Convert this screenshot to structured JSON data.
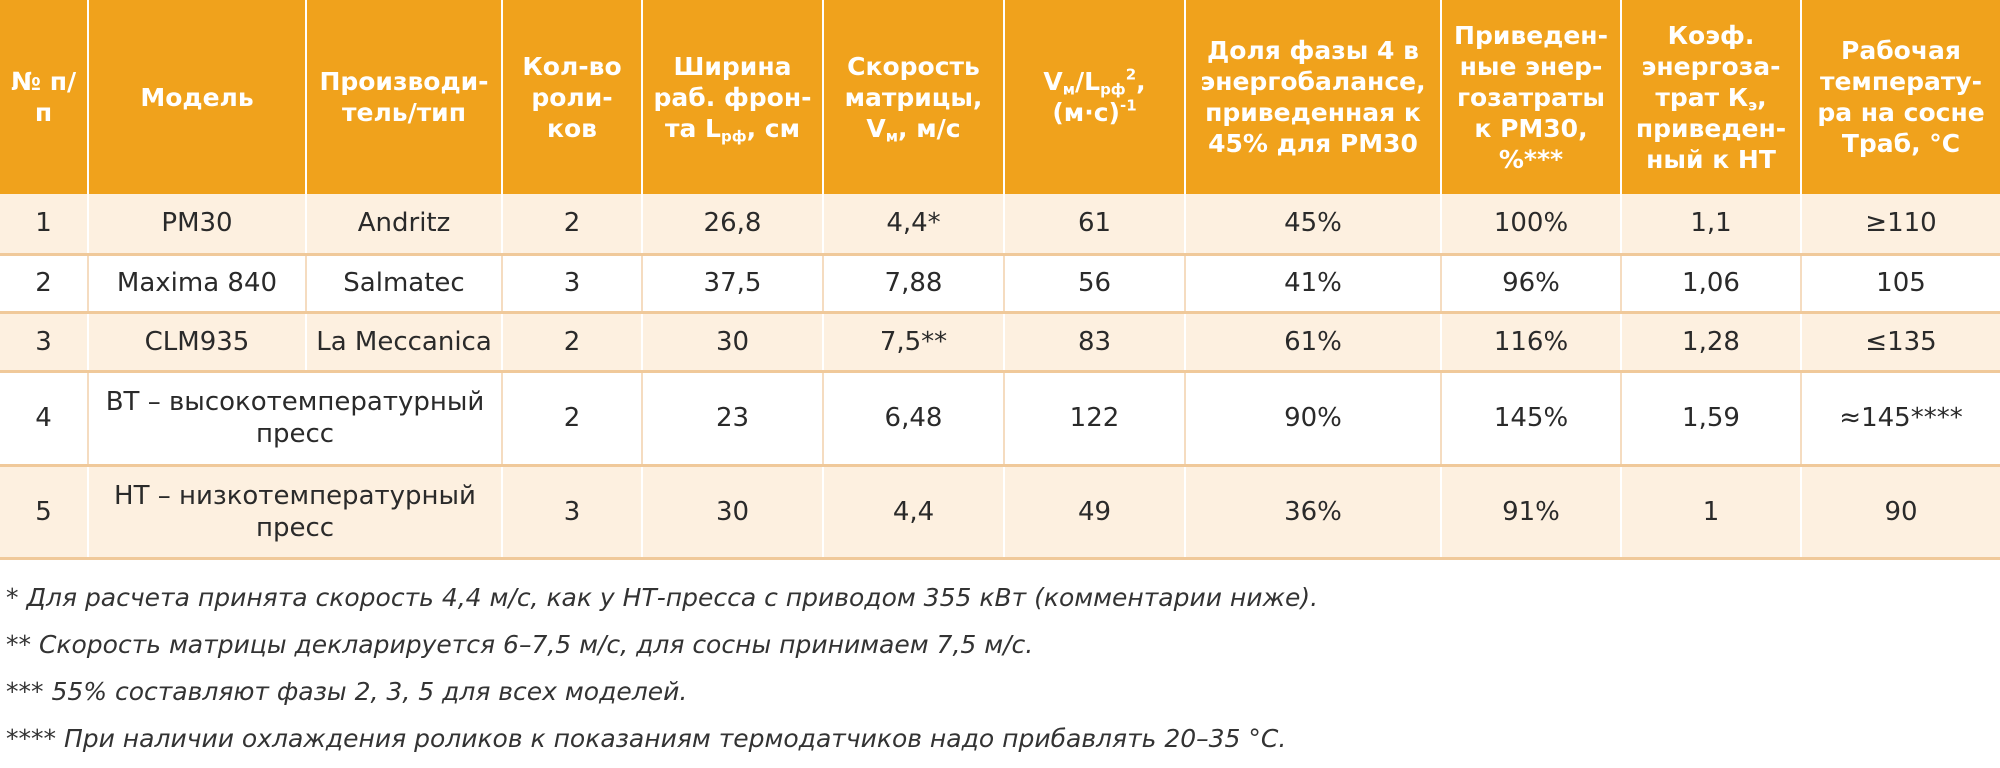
{
  "table": {
    "headers": [
      "№ п/п",
      "Модель",
      "Производи-тель/тип",
      "Кол-во роли-ков",
      "Ширина раб. фрон-та L",
      "Скорость матрицы, V",
      "V",
      "Доля фазы 4 в энергобалансе, приведенная к 45% для РМ30",
      "Приведен-ные энер-гозатраты к РМ30, %***",
      "Коэф. энергоза-трат К",
      "Рабочая температу-ра на сосне Траб, °С"
    ],
    "header_parts": {
      "width_sub": "рф",
      "width_unit": ", см",
      "speed_sub": "м",
      "speed_unit": ", м/с",
      "ratio_sub1": "м",
      "ratio_mid": "/L",
      "ratio_sub2": "рф",
      "ratio_sup": "2",
      "ratio_comma": ",",
      "ratio_unit": "(м·с)",
      "ratio_exp": "-1",
      "coef_sub": "э",
      "coef_rest": ", приведен-ный к НТ"
    },
    "rows": [
      [
        "1",
        "РМ30",
        "Andritz",
        "2",
        "26,8",
        "4,4*",
        "61",
        "45%",
        "100%",
        "1,1",
        "≥110"
      ],
      [
        "2",
        "Maxima 840",
        "Salmatec",
        "3",
        "37,5",
        "7,88",
        "56",
        "41%",
        "96%",
        "1,06",
        "105"
      ],
      [
        "3",
        "CLM935",
        "La Meccanica",
        "2",
        "30",
        "7,5**",
        "83",
        "61%",
        "116%",
        "1,28",
        "≤135"
      ],
      [
        "4",
        "ВТ – высокотемпературный пресс",
        "",
        "2",
        "23",
        "6,48",
        "122",
        "90%",
        "145%",
        "1,59",
        "≈145****"
      ],
      [
        "5",
        "НТ – низкотемпературный пресс",
        "",
        "3",
        "30",
        "4,4",
        "49",
        "36%",
        "91%",
        "1",
        "90"
      ]
    ]
  },
  "footnotes": [
    "* Для расчета принята скорость 4,4 м/с, как у НТ-пресса с приводом 355 кВт (комментарии ниже).",
    "** Скорость матрицы декларируется 6–7,5 м/с, для сосны принимаем 7,5 м/с.",
    "*** 55% составляют фазы 2, 3, 5 для всех моделей.",
    "**** При наличии охлаждения роликов к показаниям термодатчиков надо прибавлять 20–35 °С."
  ],
  "colors": {
    "header_bg": "#f0a21c",
    "header_text": "#ffffff",
    "odd_row_bg": "#fdf0e0",
    "even_row_bg": "#ffffff",
    "row_border": "#f0c99a"
  }
}
